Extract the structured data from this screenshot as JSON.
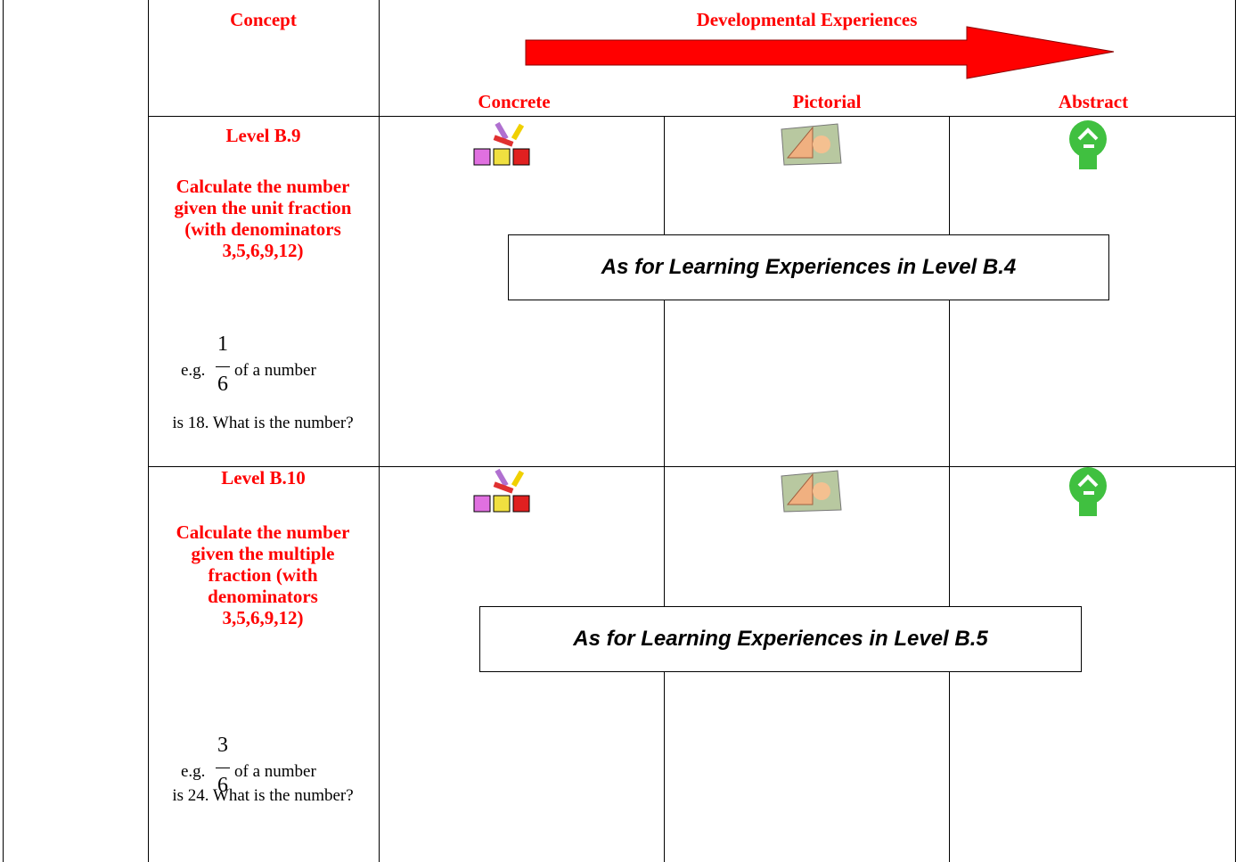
{
  "header": {
    "concept": "Concept",
    "developmental": "Developmental Experiences",
    "columns": [
      "Concrete",
      "Pictorial",
      "Abstract"
    ]
  },
  "rows": [
    {
      "level": "Level B.9",
      "description": "Calculate the number given the unit fraction (with denominators 3,5,6,9,12)",
      "example": {
        "prefix": "e.g.",
        "numerator": "1",
        "denominator": "6",
        "suffix": "of a number",
        "question": "is 18. What is the number?"
      },
      "note": "As for Learning Experiences in Level B.4"
    },
    {
      "level": "Level B.10",
      "description": "Calculate the number given the multiple fraction (with denominators 3,5,6,9,12)",
      "example": {
        "prefix": "e.g.",
        "numerator": "3",
        "denominator": "6",
        "suffix": "of a number",
        "question": "is 24. What is the number?"
      },
      "note": "As for Learning Experiences in Level B.5"
    }
  ]
}
